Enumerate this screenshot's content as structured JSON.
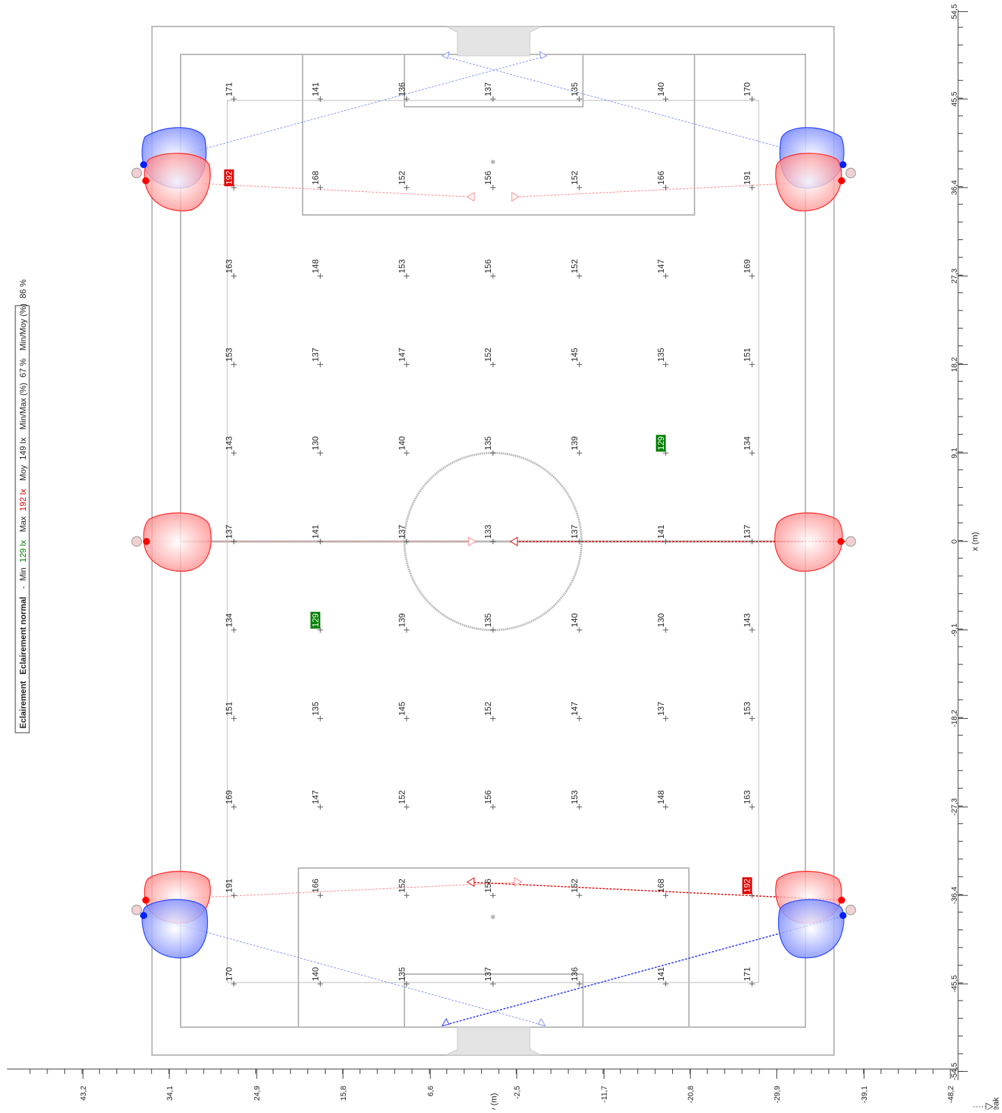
{
  "legend": {
    "title": "Eclairement",
    "subtitle": "Eclairement normal",
    "dash": "-",
    "min_label": "Min",
    "min_value": "129 lx",
    "max_label": "Max",
    "max_value": "192 lx",
    "avg_label": "Moy",
    "avg_value": "149 lx",
    "minmax_label": "Min/Max (%)",
    "minmax_value": "67 %",
    "minavg_label": "Min/Moy (%)",
    "minavg_value": "86 %"
  },
  "colors": {
    "min_highlight": "#008000",
    "max_highlight": "#e00000",
    "red_beam": "#ff4040",
    "blue_beam": "#4060ff",
    "field_line": "#b0b0b0",
    "text": "#222222"
  },
  "axes": {
    "x_label": "x (m)",
    "y_label": "y (m)",
    "peak_label": "Peak",
    "x_ticks": [
      "54,5",
      "45,5",
      "36,4",
      "27,3",
      "18,2",
      "9,1",
      "0",
      "-9,1",
      "-18,2",
      "-27,3",
      "-36,4",
      "-45,5",
      "-54,5"
    ],
    "y_ticks": [
      "43,2",
      "34,1",
      "24,9",
      "15,8",
      "6,6",
      "-2,5",
      "-11,7",
      "-20,8",
      "-29,9",
      "-39,1",
      "-48,2"
    ]
  },
  "grid": {
    "x_values": [
      45.5,
      36.4,
      27.3,
      18.2,
      9.1,
      0,
      -9.1,
      -18.2,
      -27.3,
      -36.4,
      -45.5
    ],
    "y_values": [
      27.3,
      18.2,
      9.1,
      0,
      -9.1,
      -18.2,
      -27.3
    ],
    "values": [
      [
        171,
        141,
        136,
        137,
        135,
        140,
        170
      ],
      [
        192,
        168,
        152,
        156,
        152,
        166,
        191
      ],
      [
        163,
        148,
        153,
        156,
        152,
        147,
        169
      ],
      [
        153,
        137,
        147,
        152,
        145,
        135,
        151
      ],
      [
        143,
        130,
        140,
        135,
        139,
        129,
        134
      ],
      [
        137,
        141,
        137,
        133,
        137,
        141,
        137
      ],
      [
        134,
        129,
        139,
        135,
        140,
        130,
        143
      ],
      [
        151,
        135,
        145,
        152,
        147,
        137,
        153
      ],
      [
        169,
        147,
        152,
        156,
        153,
        148,
        163
      ],
      [
        191,
        166,
        152,
        156,
        152,
        168,
        192
      ],
      [
        170,
        140,
        135,
        137,
        136,
        141,
        171
      ]
    ],
    "min_value": 129,
    "max_value": 192
  }
}
